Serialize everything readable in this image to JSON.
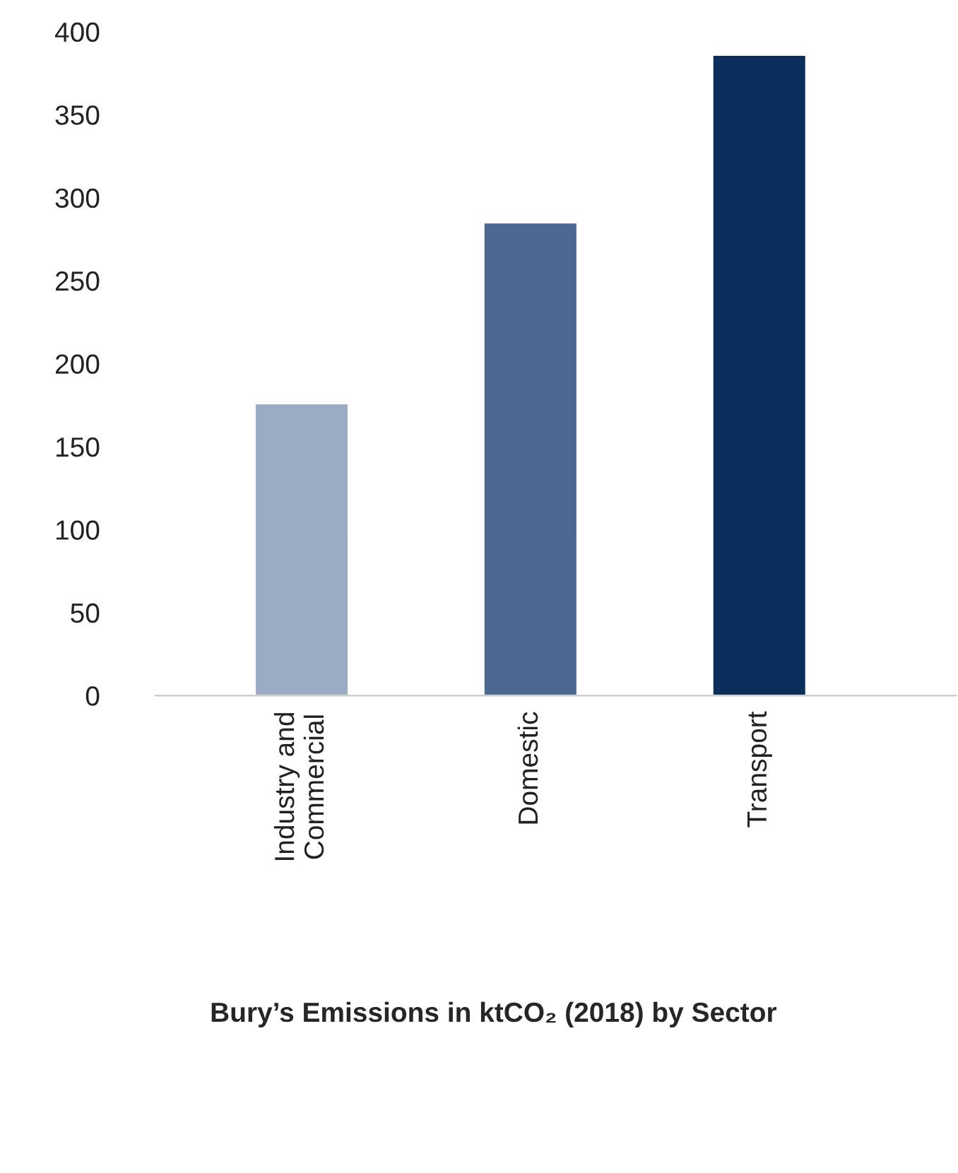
{
  "chart_data": {
    "type": "bar",
    "title": "Bury’s Emissions in ktCO₂ (2018) by Sector",
    "categories": [
      "Industry and\nCommercial",
      "Domestic",
      "Transport"
    ],
    "values": [
      176,
      285,
      386
    ],
    "colors": [
      "#9aabc3",
      "#4a6890",
      "#0b2d5c"
    ],
    "ylim": [
      0,
      400
    ],
    "yticks": [
      0,
      50,
      100,
      150,
      200,
      250,
      300,
      350,
      400
    ],
    "grid": false
  }
}
